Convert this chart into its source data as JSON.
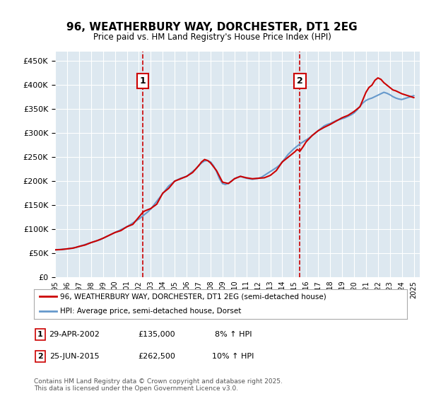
{
  "title": "96, WEATHERBURY WAY, DORCHESTER, DT1 2EG",
  "subtitle": "Price paid vs. HM Land Registry's House Price Index (HPI)",
  "background_color": "#dde8f0",
  "plot_bg_color": "#dde8f0",
  "ylabel_values": [
    0,
    50000,
    100000,
    150000,
    200000,
    250000,
    300000,
    350000,
    400000,
    450000
  ],
  "ylim": [
    0,
    470000
  ],
  "xlim_start": 1995,
  "xlim_end": 2025.5,
  "marker1": {
    "x": 2002.33,
    "label": "1",
    "date": "29-APR-2002",
    "price": "£135,000",
    "pct": "8% ↑ HPI"
  },
  "marker2": {
    "x": 2015.48,
    "label": "2",
    "date": "25-JUN-2015",
    "price": "£262,500",
    "pct": "10% ↑ HPI"
  },
  "legend_line1": "96, WEATHERBURY WAY, DORCHESTER, DT1 2EG (semi-detached house)",
  "legend_line2": "HPI: Average price, semi-detached house, Dorset",
  "footnote": "Contains HM Land Registry data © Crown copyright and database right 2025.\nThis data is licensed under the Open Government Licence v3.0.",
  "red_color": "#cc0000",
  "blue_color": "#6699cc",
  "hpi_years": [
    1995,
    1995.25,
    1995.5,
    1995.75,
    1996,
    1996.25,
    1996.5,
    1996.75,
    1997,
    1997.25,
    1997.5,
    1997.75,
    1998,
    1998.25,
    1998.5,
    1998.75,
    1999,
    1999.25,
    1999.5,
    1999.75,
    2000,
    2000.25,
    2000.5,
    2000.75,
    2001,
    2001.25,
    2001.5,
    2001.75,
    2002,
    2002.25,
    2002.5,
    2002.75,
    2003,
    2003.25,
    2003.5,
    2003.75,
    2004,
    2004.25,
    2004.5,
    2004.75,
    2005,
    2005.25,
    2005.5,
    2005.75,
    2006,
    2006.25,
    2006.5,
    2006.75,
    2007,
    2007.25,
    2007.5,
    2007.75,
    2008,
    2008.25,
    2008.5,
    2008.75,
    2009,
    2009.25,
    2009.5,
    2009.75,
    2010,
    2010.25,
    2010.5,
    2010.75,
    2011,
    2011.25,
    2011.5,
    2011.75,
    2012,
    2012.25,
    2012.5,
    2012.75,
    2013,
    2013.25,
    2013.5,
    2013.75,
    2014,
    2014.25,
    2014.5,
    2014.75,
    2015,
    2015.25,
    2015.5,
    2015.75,
    2016,
    2016.25,
    2016.5,
    2016.75,
    2017,
    2017.25,
    2017.5,
    2017.75,
    2018,
    2018.25,
    2018.5,
    2018.75,
    2019,
    2019.25,
    2019.5,
    2019.75,
    2020,
    2020.25,
    2020.5,
    2020.75,
    2021,
    2021.25,
    2021.5,
    2021.75,
    2022,
    2022.25,
    2022.5,
    2022.75,
    2023,
    2023.25,
    2023.5,
    2023.75,
    2024,
    2024.25,
    2024.5,
    2024.75,
    2025
  ],
  "hpi_values": [
    57000,
    57500,
    58000,
    58500,
    59000,
    60000,
    61000,
    62000,
    64000,
    66000,
    68000,
    70000,
    72000,
    74000,
    76000,
    78000,
    81000,
    84000,
    87000,
    90000,
    93000,
    96000,
    99000,
    102000,
    105000,
    109000,
    113000,
    117000,
    121000,
    126000,
    131000,
    136000,
    142000,
    150000,
    158000,
    166000,
    174000,
    182000,
    190000,
    195000,
    200000,
    203000,
    206000,
    208000,
    210000,
    215000,
    220000,
    225000,
    232000,
    238000,
    242000,
    243000,
    240000,
    232000,
    220000,
    205000,
    195000,
    193000,
    196000,
    200000,
    205000,
    208000,
    210000,
    208000,
    206000,
    205000,
    204000,
    205000,
    206000,
    208000,
    212000,
    216000,
    220000,
    224000,
    228000,
    233000,
    240000,
    248000,
    256000,
    262000,
    268000,
    273000,
    278000,
    282000,
    286000,
    290000,
    295000,
    300000,
    305000,
    310000,
    315000,
    318000,
    320000,
    323000,
    326000,
    328000,
    330000,
    332000,
    335000,
    338000,
    342000,
    348000,
    356000,
    363000,
    368000,
    371000,
    373000,
    376000,
    379000,
    382000,
    385000,
    383000,
    380000,
    376000,
    373000,
    371000,
    370000,
    372000,
    374000,
    376000,
    378000
  ],
  "price_years": [
    1995,
    1995.5,
    1996,
    1996.5,
    1997,
    1997.5,
    1998,
    1998.5,
    1999,
    1999.5,
    2000,
    2000.5,
    2001,
    2001.5,
    2002.33,
    2002.5,
    2003,
    2003.5,
    2004,
    2004.5,
    2005,
    2005.5,
    2006,
    2006.5,
    2007,
    2007.25,
    2007.5,
    2007.75,
    2008,
    2008.5,
    2009,
    2009.5,
    2010,
    2010.5,
    2011,
    2011.5,
    2012,
    2012.5,
    2013,
    2013.5,
    2014,
    2014.5,
    2015,
    2015.25,
    2015.48,
    2015.75,
    2016,
    2016.5,
    2017,
    2017.5,
    2018,
    2018.5,
    2019,
    2019.5,
    2020,
    2020.5,
    2021,
    2021.25,
    2021.5,
    2021.75,
    2022,
    2022.25,
    2022.5,
    2022.75,
    2023,
    2023.25,
    2023.5,
    2023.75,
    2024,
    2024.25,
    2024.5,
    2024.75,
    2025
  ],
  "price_values": [
    57000,
    57500,
    59000,
    60500,
    64000,
    67000,
    72000,
    76000,
    81000,
    87000,
    93000,
    97000,
    105000,
    110000,
    135000,
    138000,
    143000,
    152000,
    175000,
    185000,
    200000,
    205000,
    210000,
    218000,
    232000,
    240000,
    245000,
    243000,
    238000,
    222000,
    198000,
    195000,
    205000,
    210000,
    207000,
    205000,
    206000,
    207000,
    212000,
    222000,
    240000,
    250000,
    260000,
    266000,
    262500,
    272000,
    282000,
    295000,
    305000,
    312000,
    318000,
    325000,
    332000,
    337000,
    345000,
    355000,
    385000,
    395000,
    400000,
    410000,
    415000,
    412000,
    405000,
    400000,
    395000,
    390000,
    388000,
    385000,
    382000,
    380000,
    378000,
    376000,
    374000
  ]
}
